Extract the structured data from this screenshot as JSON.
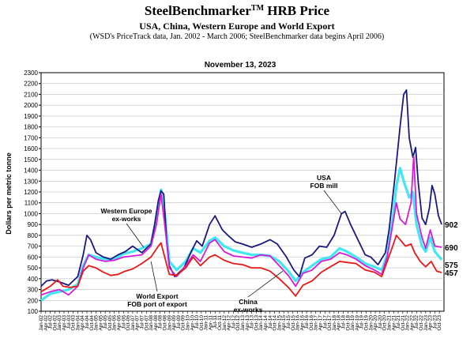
{
  "header": {
    "title_main": "SteelBenchmarker",
    "title_tm": "TM",
    "title_rest": " HRB Price",
    "subtitle": "USA, China, Western Europe and World Export",
    "note": "(WSD's PriceTrack data, Jan. 2002 - March 2006; SteelBenchmarker data begins April 2006)"
  },
  "colors": {
    "usa": "#1a1a7e",
    "western_europe": "#d81bd8",
    "world_export": "#40e8f0",
    "china": "#e81818",
    "grid": "#bdbdbd",
    "axis": "#000000"
  },
  "chart_data": {
    "type": "line",
    "date_label": "November 13, 2023",
    "ylabel": "Dollars per metric tonne",
    "ylim": [
      100,
      2300
    ],
    "yticks": [
      100,
      200,
      300,
      400,
      500,
      600,
      700,
      800,
      900,
      1000,
      1100,
      1200,
      1300,
      1400,
      1500,
      1600,
      1700,
      1800,
      1900,
      2000,
      2100,
      2200,
      2300
    ],
    "xlim": [
      2002.0,
      2024.0
    ],
    "x_tick_labels": [
      "Jan-02",
      "Apr-02",
      "Jul-02",
      "Oct-02",
      "Jan-03",
      "Apr-03",
      "Jul-03",
      "Oct-03",
      "Jan-04",
      "Apr-04",
      "Jul-04",
      "Oct-04",
      "Jan-05",
      "Apr-05",
      "Jul-05",
      "Oct-05",
      "Jan-06",
      "Apr-06",
      "Jul-06",
      "Oct-06",
      "Jan-07",
      "Apr-07",
      "Jul-07",
      "Oct-07",
      "Jan-08",
      "Apr-08",
      "Jul-08",
      "Oct-08",
      "Jan-09",
      "Apr-09",
      "Jul-09",
      "Oct-09",
      "Jan-10",
      "Apr-10",
      "Jul-10",
      "Oct-10",
      "Jan-11",
      "Apr-11",
      "Jul-11",
      "Oct-11",
      "Jan-12",
      "Apr-12",
      "Jul-12",
      "Oct-12",
      "Jan-13",
      "Apr-13",
      "Jul-13",
      "Oct-13",
      "Jan-14",
      "Apr-14",
      "Jul-14",
      "Oct-14",
      "Jan-15",
      "Apr-15",
      "Jul-15",
      "Oct-15",
      "Jan-16",
      "Apr-16",
      "Jul-16",
      "Oct-16",
      "Jan-17",
      "Apr-17",
      "Jul-17",
      "Oct-17",
      "Jan-18",
      "Apr-18",
      "Jul-18",
      "Oct-18",
      "Jan-19",
      "Apr-19",
      "Jul-19",
      "Oct-19",
      "Jan-20",
      "Apr-20",
      "Jul-20",
      "Oct-20",
      "Jan-21",
      "Apr-21",
      "Jul-21",
      "Oct-21",
      "Jan-22",
      "Apr-22",
      "Jul-22",
      "Oct-22",
      "Jan-23",
      "Apr-23",
      "Jul-23",
      "Oct-23"
    ],
    "series": [
      {
        "name": "USA FOB mill",
        "annotation": [
          "USA",
          "FOB mill"
        ],
        "color_key": "usa",
        "end_label": "902",
        "points": [
          [
            2002.0,
            330
          ],
          [
            2002.3,
            380
          ],
          [
            2002.6,
            390
          ],
          [
            2003.0,
            370
          ],
          [
            2003.5,
            340
          ],
          [
            2004.0,
            420
          ],
          [
            2004.3,
            620
          ],
          [
            2004.5,
            800
          ],
          [
            2004.7,
            760
          ],
          [
            2005.0,
            640
          ],
          [
            2005.4,
            600
          ],
          [
            2005.8,
            580
          ],
          [
            2006.2,
            620
          ],
          [
            2006.6,
            650
          ],
          [
            2007.0,
            700
          ],
          [
            2007.5,
            640
          ],
          [
            2008.0,
            720
          ],
          [
            2008.2,
            900
          ],
          [
            2008.4,
            1120
          ],
          [
            2008.55,
            1210
          ],
          [
            2008.7,
            1180
          ],
          [
            2008.85,
            760
          ],
          [
            2009.0,
            520
          ],
          [
            2009.3,
            420
          ],
          [
            2009.8,
            500
          ],
          [
            2010.2,
            650
          ],
          [
            2010.5,
            750
          ],
          [
            2010.8,
            700
          ],
          [
            2011.2,
            900
          ],
          [
            2011.5,
            980
          ],
          [
            2011.9,
            850
          ],
          [
            2012.2,
            800
          ],
          [
            2012.6,
            740
          ],
          [
            2013.0,
            720
          ],
          [
            2013.5,
            690
          ],
          [
            2014.0,
            720
          ],
          [
            2014.5,
            760
          ],
          [
            2014.9,
            720
          ],
          [
            2015.4,
            600
          ],
          [
            2015.8,
            480
          ],
          [
            2016.1,
            420
          ],
          [
            2016.4,
            590
          ],
          [
            2016.8,
            620
          ],
          [
            2017.2,
            700
          ],
          [
            2017.6,
            690
          ],
          [
            2018.0,
            800
          ],
          [
            2018.4,
            1000
          ],
          [
            2018.6,
            1020
          ],
          [
            2018.9,
            900
          ],
          [
            2019.3,
            760
          ],
          [
            2019.7,
            620
          ],
          [
            2020.0,
            600
          ],
          [
            2020.4,
            530
          ],
          [
            2020.8,
            640
          ],
          [
            2021.0,
            850
          ],
          [
            2021.3,
            1300
          ],
          [
            2021.6,
            1800
          ],
          [
            2021.8,
            2100
          ],
          [
            2021.95,
            2140
          ],
          [
            2022.1,
            1700
          ],
          [
            2022.3,
            1520
          ],
          [
            2022.45,
            1610
          ],
          [
            2022.6,
            1280
          ],
          [
            2022.8,
            960
          ],
          [
            2023.0,
            900
          ],
          [
            2023.2,
            1050
          ],
          [
            2023.35,
            1260
          ],
          [
            2023.5,
            1180
          ],
          [
            2023.7,
            980
          ],
          [
            2023.87,
            902
          ]
        ]
      },
      {
        "name": "Western Europe ex-works",
        "annotation": [
          "Western Europe",
          "ex-works"
        ],
        "color_key": "western_europe",
        "end_label": "690",
        "points": [
          [
            2002.0,
            250
          ],
          [
            2002.5,
            280
          ],
          [
            2003.0,
            300
          ],
          [
            2003.5,
            250
          ],
          [
            2004.0,
            330
          ],
          [
            2004.3,
            500
          ],
          [
            2004.6,
            620
          ],
          [
            2005.0,
            580
          ],
          [
            2005.5,
            560
          ],
          [
            2006.0,
            570
          ],
          [
            2006.5,
            600
          ],
          [
            2007.0,
            610
          ],
          [
            2007.5,
            620
          ],
          [
            2008.0,
            700
          ],
          [
            2008.3,
            900
          ],
          [
            2008.55,
            1180
          ],
          [
            2008.75,
            900
          ],
          [
            2009.0,
            500
          ],
          [
            2009.4,
            420
          ],
          [
            2009.9,
            520
          ],
          [
            2010.3,
            620
          ],
          [
            2010.7,
            560
          ],
          [
            2011.2,
            730
          ],
          [
            2011.5,
            760
          ],
          [
            2012.0,
            650
          ],
          [
            2012.5,
            610
          ],
          [
            2013.0,
            600
          ],
          [
            2013.5,
            590
          ],
          [
            2014.0,
            620
          ],
          [
            2014.5,
            610
          ],
          [
            2015.0,
            520
          ],
          [
            2015.5,
            430
          ],
          [
            2015.9,
            330
          ],
          [
            2016.3,
            450
          ],
          [
            2016.8,
            480
          ],
          [
            2017.3,
            560
          ],
          [
            2017.8,
            580
          ],
          [
            2018.3,
            640
          ],
          [
            2018.7,
            620
          ],
          [
            2019.2,
            580
          ],
          [
            2019.7,
            520
          ],
          [
            2020.2,
            480
          ],
          [
            2020.6,
            440
          ],
          [
            2020.9,
            600
          ],
          [
            2021.2,
            900
          ],
          [
            2021.4,
            1100
          ],
          [
            2021.6,
            950
          ],
          [
            2021.9,
            900
          ],
          [
            2022.2,
            1100
          ],
          [
            2022.35,
            1530
          ],
          [
            2022.5,
            1000
          ],
          [
            2022.8,
            780
          ],
          [
            2023.0,
            680
          ],
          [
            2023.25,
            850
          ],
          [
            2023.5,
            700
          ],
          [
            2023.87,
            690
          ]
        ]
      },
      {
        "name": "World Export FOB port of export",
        "annotation": [
          "World Export",
          "FOB port of export"
        ],
        "color_key": "world_export",
        "end_label": "575",
        "points": [
          [
            2002.0,
            200
          ],
          [
            2002.5,
            260
          ],
          [
            2003.0,
            280
          ],
          [
            2003.5,
            300
          ],
          [
            2004.0,
            350
          ],
          [
            2004.3,
            520
          ],
          [
            2004.6,
            620
          ],
          [
            2005.0,
            600
          ],
          [
            2005.5,
            580
          ],
          [
            2006.0,
            580
          ],
          [
            2006.5,
            630
          ],
          [
            2007.0,
            650
          ],
          [
            2007.5,
            680
          ],
          [
            2008.0,
            720
          ],
          [
            2008.3,
            950
          ],
          [
            2008.55,
            1220
          ],
          [
            2008.75,
            1000
          ],
          [
            2009.0,
            560
          ],
          [
            2009.4,
            480
          ],
          [
            2009.9,
            560
          ],
          [
            2010.3,
            680
          ],
          [
            2010.7,
            640
          ],
          [
            2011.2,
            750
          ],
          [
            2011.5,
            780
          ],
          [
            2012.0,
            700
          ],
          [
            2012.5,
            660
          ],
          [
            2013.0,
            640
          ],
          [
            2013.5,
            620
          ],
          [
            2014.0,
            620
          ],
          [
            2014.5,
            610
          ],
          [
            2015.0,
            560
          ],
          [
            2015.5,
            470
          ],
          [
            2015.9,
            380
          ],
          [
            2016.3,
            460
          ],
          [
            2016.8,
            520
          ],
          [
            2017.3,
            580
          ],
          [
            2017.8,
            600
          ],
          [
            2018.3,
            680
          ],
          [
            2018.7,
            650
          ],
          [
            2019.2,
            600
          ],
          [
            2019.7,
            540
          ],
          [
            2020.2,
            510
          ],
          [
            2020.6,
            480
          ],
          [
            2020.9,
            620
          ],
          [
            2021.2,
            950
          ],
          [
            2021.4,
            1250
          ],
          [
            2021.6,
            1420
          ],
          [
            2021.8,
            1300
          ],
          [
            2022.1,
            1150
          ],
          [
            2022.3,
            1200
          ],
          [
            2022.5,
            900
          ],
          [
            2022.8,
            700
          ],
          [
            2023.0,
            650
          ],
          [
            2023.25,
            780
          ],
          [
            2023.5,
            650
          ],
          [
            2023.87,
            575
          ]
        ]
      },
      {
        "name": "China ex-works",
        "annotation": [
          "China",
          "ex-works"
        ],
        "color_key": "china",
        "end_label": "457",
        "points": [
          [
            2002.0,
            280
          ],
          [
            2002.5,
            330
          ],
          [
            2002.9,
            390
          ],
          [
            2003.2,
            330
          ],
          [
            2003.6,
            320
          ],
          [
            2004.0,
            330
          ],
          [
            2004.3,
            470
          ],
          [
            2004.6,
            520
          ],
          [
            2005.0,
            500
          ],
          [
            2005.4,
            460
          ],
          [
            2005.8,
            430
          ],
          [
            2006.2,
            440
          ],
          [
            2006.6,
            470
          ],
          [
            2007.0,
            490
          ],
          [
            2007.5,
            540
          ],
          [
            2008.0,
            600
          ],
          [
            2008.4,
            700
          ],
          [
            2008.55,
            730
          ],
          [
            2008.75,
            600
          ],
          [
            2009.0,
            440
          ],
          [
            2009.4,
            430
          ],
          [
            2009.9,
            500
          ],
          [
            2010.3,
            600
          ],
          [
            2010.7,
            520
          ],
          [
            2011.2,
            600
          ],
          [
            2011.5,
            620
          ],
          [
            2012.0,
            570
          ],
          [
            2012.5,
            540
          ],
          [
            2013.0,
            530
          ],
          [
            2013.5,
            500
          ],
          [
            2014.0,
            500
          ],
          [
            2014.5,
            470
          ],
          [
            2015.0,
            400
          ],
          [
            2015.5,
            320
          ],
          [
            2015.9,
            240
          ],
          [
            2016.3,
            340
          ],
          [
            2016.8,
            380
          ],
          [
            2017.3,
            460
          ],
          [
            2017.8,
            510
          ],
          [
            2018.3,
            560
          ],
          [
            2018.7,
            550
          ],
          [
            2019.2,
            540
          ],
          [
            2019.7,
            480
          ],
          [
            2020.2,
            460
          ],
          [
            2020.6,
            420
          ],
          [
            2020.9,
            560
          ],
          [
            2021.2,
            700
          ],
          [
            2021.4,
            800
          ],
          [
            2021.6,
            760
          ],
          [
            2021.9,
            700
          ],
          [
            2022.2,
            720
          ],
          [
            2022.4,
            640
          ],
          [
            2022.7,
            560
          ],
          [
            2023.0,
            510
          ],
          [
            2023.3,
            560
          ],
          [
            2023.6,
            470
          ],
          [
            2023.87,
            457
          ]
        ]
      }
    ]
  }
}
